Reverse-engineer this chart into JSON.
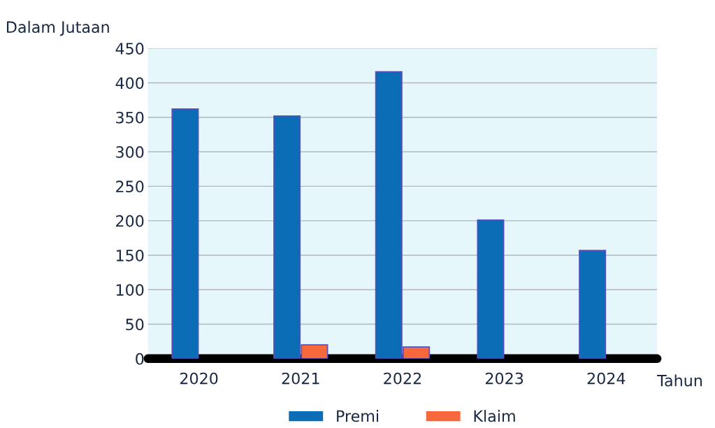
{
  "chart_data": {
    "type": "bar",
    "ylabel": "Dalam Jutaan",
    "xlabel": "Tahun",
    "categories": [
      "2020",
      "2021",
      "2022",
      "2023",
      "2024"
    ],
    "series": [
      {
        "name": "Premi",
        "color": "#0a6db5",
        "values": [
          362,
          352,
          416,
          201,
          157
        ]
      },
      {
        "name": "Klaim",
        "color": "#f7693c",
        "values": [
          null,
          20,
          17,
          null,
          null
        ]
      }
    ],
    "ylim": [
      0,
      450
    ],
    "yticks": [
      0,
      50,
      100,
      150,
      200,
      250,
      300,
      350,
      400,
      450
    ],
    "grid": "y",
    "legend": "bottom"
  }
}
